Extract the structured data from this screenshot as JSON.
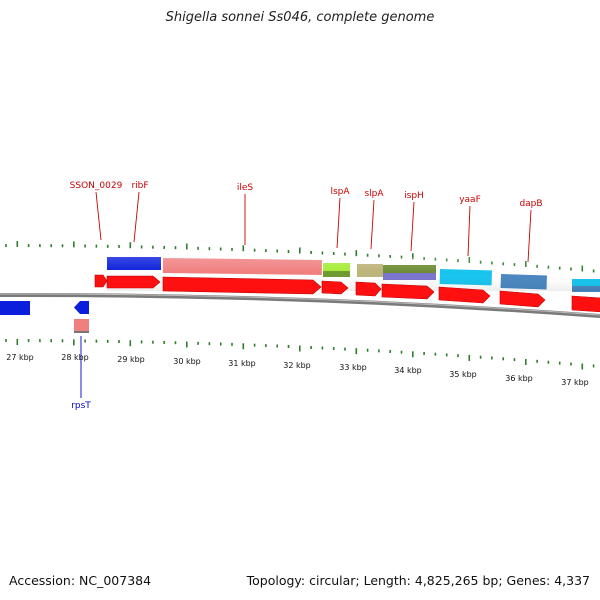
{
  "title": "Shigella sonnei Ss046, complete genome",
  "footer": {
    "accession": "Accession: NC_007384",
    "summary": "Topology: circular; Length: 4,825,265 bp; Genes: 4,337"
  },
  "colors": {
    "forward_label": "#cc0000",
    "reverse_label": "#0000cc",
    "tick": "#2d7d2d",
    "backbone": "#888888"
  },
  "kbp_labels": [
    "27 kbp",
    "28 kbp",
    "29 kbp",
    "30 kbp",
    "31 kbp",
    "32 kbp",
    "33 kbp",
    "34 kbp",
    "35 kbp",
    "36 kbp",
    "37 kbp"
  ],
  "gene_labels": [
    {
      "text": "SSON_0029",
      "strand": "forward"
    },
    {
      "text": "ribF",
      "strand": "forward"
    },
    {
      "text": "ileS",
      "strand": "forward"
    },
    {
      "text": "lspA",
      "strand": "forward"
    },
    {
      "text": "slpA",
      "strand": "forward"
    },
    {
      "text": "ispH",
      "strand": "forward"
    },
    {
      "text": "yaaF",
      "strand": "forward"
    },
    {
      "text": "dapB",
      "strand": "forward"
    },
    {
      "text": "rpsT",
      "strand": "reverse"
    }
  ]
}
